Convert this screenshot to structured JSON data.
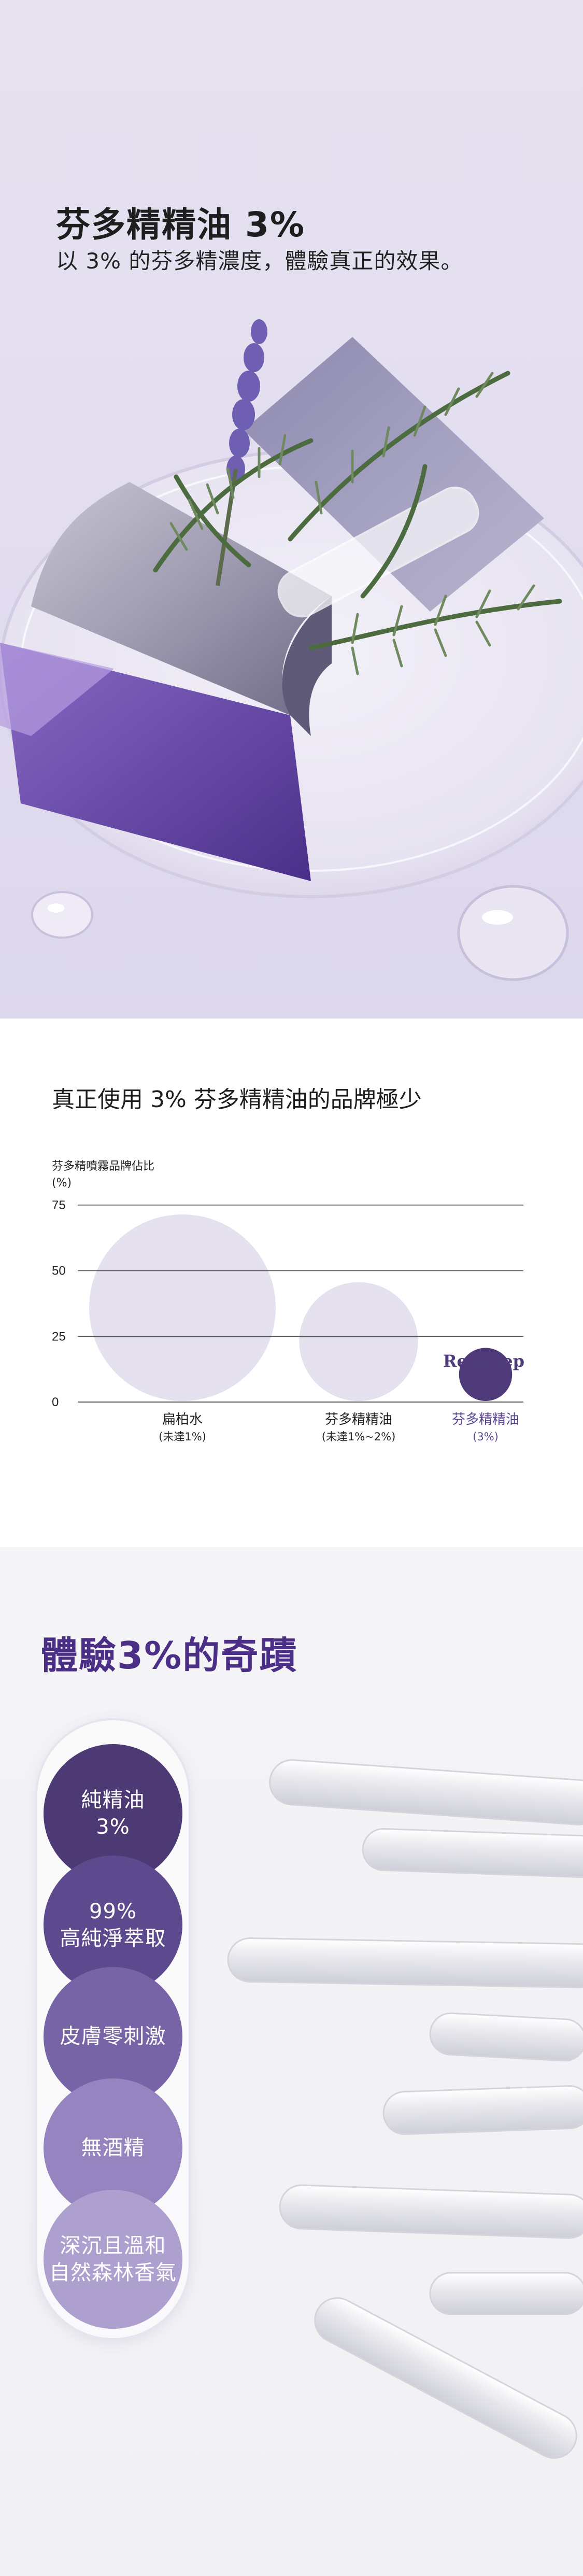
{
  "hero": {
    "title": "芬多精精油 3%",
    "subtitle": "以 3% 的芬多精濃度，體驗真正的效果。"
  },
  "chart_section": {
    "heading": "真正使用 3% 芬多精精油的品牌極少",
    "caption_line1": "芬多精噴霧品牌佔比",
    "caption_line2": "(%)",
    "brand_logo": "Re:Sleep"
  },
  "chart_data": {
    "type": "bubble",
    "title": "芬多精噴霧品牌佔比",
    "ylabel": "(%)",
    "ylim": [
      0,
      75
    ],
    "yticks": [
      0,
      25,
      50,
      75
    ],
    "grid": true,
    "categories": [
      {
        "name": "扁柏水",
        "sub": "(未達1%)",
        "value": 37,
        "highlight": false
      },
      {
        "name": "芬多精精油",
        "sub": "(未達1%~2%)",
        "value": 15,
        "highlight": false
      },
      {
        "name": "芬多精精油",
        "sub": "(3%)",
        "value": 3,
        "highlight": true
      }
    ],
    "colors": {
      "bubble": "#e5e1ee",
      "highlight": "#4e3a78",
      "highlight_text": "#5a4690",
      "grid": "#555555"
    }
  },
  "miracle": {
    "title": "體驗3%的奇蹟",
    "features": [
      {
        "label": "純精油\n3%",
        "color": "#4d3a74"
      },
      {
        "label": "99%\n高純淨萃取",
        "color": "#5d4a8e"
      },
      {
        "label": "皮膚零刺激",
        "color": "#7764a6"
      },
      {
        "label": "無酒精",
        "color": "#9584bf"
      },
      {
        "label": "深沉且溫和\n自然森林香氣",
        "color": "#ada0cf"
      }
    ]
  }
}
